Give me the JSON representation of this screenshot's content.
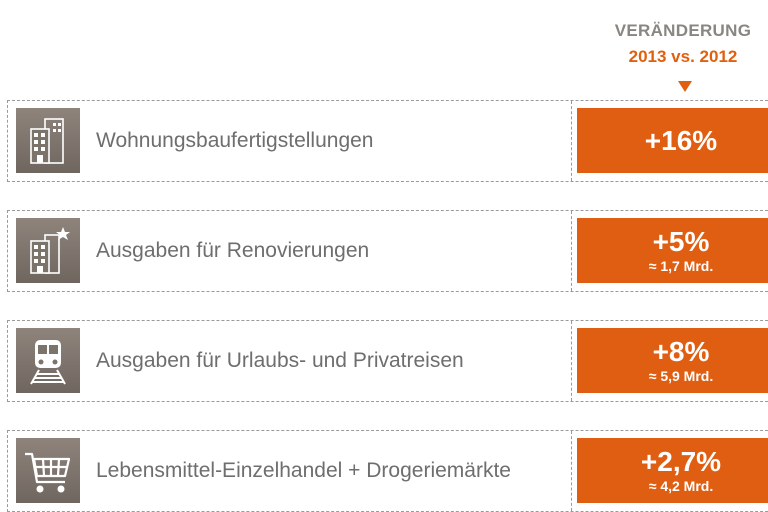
{
  "header": {
    "line1": "VERÄNDERUNG",
    "line2": "2013 vs. 2012"
  },
  "colors": {
    "accent": "#e05e12",
    "header_orange": "#e06010",
    "icon_bg": "#7c736b"
  },
  "rows": [
    {
      "icon": "apartment-building-icon",
      "label": "Wohnungsbaufertigstellungen",
      "value": "+16%",
      "sub": ""
    },
    {
      "icon": "building-renovation-icon",
      "label": "Ausgaben für Renovierungen",
      "value": "+5%",
      "sub": "≈ 1,7 Mrd."
    },
    {
      "icon": "train-icon",
      "label": "Ausgaben für Urlaubs- und Privatreisen",
      "value": "+8%",
      "sub": "≈ 5,9 Mrd."
    },
    {
      "icon": "shopping-cart-icon",
      "label": "Lebensmittel-Einzelhandel + Drogeriemärkte",
      "value": "+2,7%",
      "sub": "≈ 4,2 Mrd."
    }
  ]
}
